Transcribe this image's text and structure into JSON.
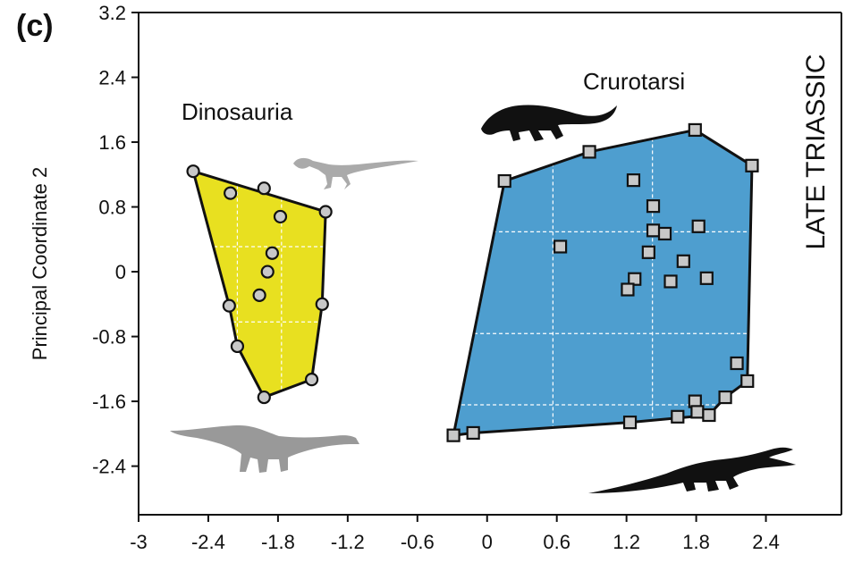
{
  "chart_data": {
    "type": "scatter",
    "panel_label": "(c)",
    "period_label": "LATE TRIASSIC",
    "xlabel": "",
    "ylabel": "Principal Coordinate 2",
    "xlim": [
      -3,
      3.05
    ],
    "ylim": [
      -3.0,
      3.2
    ],
    "xticks": [
      -3,
      -2.4,
      -1.8,
      -1.2,
      -0.6,
      0,
      0.6,
      1.2,
      1.8,
      2.4
    ],
    "xtick_labels": [
      "-3",
      "-2.4",
      "-1.8",
      "-1.2",
      "-0.6",
      "0",
      "0.6",
      "1.2",
      "1.8",
      "2.4"
    ],
    "yticks": [
      3.2,
      2.4,
      1.6,
      0.8,
      0,
      -0.8,
      -1.6,
      -2.4
    ],
    "ytick_labels": [
      "3.2",
      "2.4",
      "1.6",
      "0.8",
      "0",
      "-0.8",
      "-1.6",
      "-2.4"
    ],
    "series": [
      {
        "name": "Dinosauria",
        "marker": "circle",
        "fill": "#e8e020",
        "point_fill": "#c8c8c8",
        "points": [
          [
            -2.53,
            1.24
          ],
          [
            -2.21,
            0.97
          ],
          [
            -1.92,
            1.03
          ],
          [
            -1.78,
            0.68
          ],
          [
            -1.85,
            0.23
          ],
          [
            -1.89,
            0.0
          ],
          [
            -1.96,
            -0.29
          ],
          [
            -2.22,
            -0.42
          ],
          [
            -2.15,
            -0.92
          ],
          [
            -1.92,
            -1.55
          ],
          [
            -1.51,
            -1.33
          ],
          [
            -1.42,
            -0.4
          ],
          [
            -1.39,
            0.74
          ]
        ],
        "hull": [
          [
            -2.53,
            1.24
          ],
          [
            -1.39,
            0.74
          ],
          [
            -1.42,
            -0.4
          ],
          [
            -1.51,
            -1.33
          ],
          [
            -1.92,
            -1.55
          ],
          [
            -2.15,
            -0.92
          ],
          [
            -2.22,
            -0.42
          ]
        ]
      },
      {
        "name": "Crurotarsi",
        "marker": "square",
        "fill": "#4e9ecf",
        "point_fill": "#c8c8c8",
        "points": [
          [
            0.15,
            1.12
          ],
          [
            0.88,
            1.48
          ],
          [
            1.79,
            1.75
          ],
          [
            2.28,
            1.31
          ],
          [
            1.26,
            1.13
          ],
          [
            1.43,
            0.81
          ],
          [
            1.43,
            0.51
          ],
          [
            1.53,
            0.47
          ],
          [
            1.82,
            0.56
          ],
          [
            0.63,
            0.31
          ],
          [
            1.39,
            0.24
          ],
          [
            1.69,
            0.13
          ],
          [
            1.89,
            -0.08
          ],
          [
            1.58,
            -0.12
          ],
          [
            1.27,
            -0.09
          ],
          [
            1.21,
            -0.22
          ],
          [
            2.15,
            -1.13
          ],
          [
            2.24,
            -1.35
          ],
          [
            2.05,
            -1.55
          ],
          [
            1.79,
            -1.6
          ],
          [
            1.81,
            -1.73
          ],
          [
            1.91,
            -1.77
          ],
          [
            1.64,
            -1.79
          ],
          [
            1.23,
            -1.86
          ],
          [
            -0.12,
            -1.99
          ],
          [
            -0.29,
            -2.02
          ]
        ],
        "hull": [
          [
            0.15,
            1.12
          ],
          [
            0.88,
            1.48
          ],
          [
            1.79,
            1.75
          ],
          [
            2.28,
            1.31
          ],
          [
            2.24,
            -1.35
          ],
          [
            2.05,
            -1.55
          ],
          [
            1.91,
            -1.77
          ],
          [
            1.23,
            -1.86
          ],
          [
            -0.12,
            -1.99
          ],
          [
            -0.29,
            -2.02
          ]
        ]
      }
    ],
    "grid": true
  },
  "silhouettes": [
    {
      "name": "small-theropod-silhouette-icon",
      "color": "#aaaaaa"
    },
    {
      "name": "sauropodomorph-silhouette-icon",
      "color": "#999999"
    },
    {
      "name": "aetosaur-silhouette-icon",
      "color": "#111111"
    },
    {
      "name": "phytosaur-silhouette-icon",
      "color": "#111111"
    }
  ]
}
